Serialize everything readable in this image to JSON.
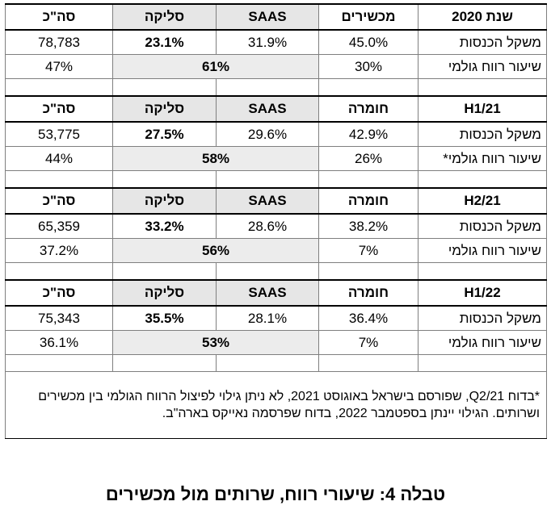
{
  "sections": [
    {
      "header": {
        "period": "שנת 2020",
        "col1": "מכשירים",
        "col2": "SAAS",
        "col3": "סליקה",
        "total": "סה\"כ"
      },
      "revenue": {
        "label": "משקל הכנסות",
        "col1": "45.0%",
        "col2": "31.9%",
        "col3": "23.1%",
        "total": "78,783"
      },
      "margin": {
        "label": "שיעור רווח גולמי",
        "col1": "30%",
        "merged": "61%",
        "total": "47%"
      }
    },
    {
      "header": {
        "period": "H1/21",
        "col1": "חומרה",
        "col2": "SAAS",
        "col3": "סליקה",
        "total": "סה\"כ"
      },
      "revenue": {
        "label": "משקל הכנסות",
        "col1": "42.9%",
        "col2": "29.6%",
        "col3": "27.5%",
        "total": "53,775"
      },
      "margin": {
        "label": "שיעור רווח גולמי*",
        "col1": "26%",
        "merged": "58%",
        "total": "44%"
      }
    },
    {
      "header": {
        "period": "H2/21",
        "col1": "חומרה",
        "col2": "SAAS",
        "col3": "סליקה",
        "total": "סה\"כ"
      },
      "revenue": {
        "label": "משקל הכנסות",
        "col1": "38.2%",
        "col2": "28.6%",
        "col3": "33.2%",
        "total": "65,359"
      },
      "margin": {
        "label": "שיעור רווח גולמי",
        "col1": "7%",
        "merged": "56%",
        "total": "37.2%"
      }
    },
    {
      "header": {
        "period": "H1/22",
        "col1": "חומרה",
        "col2": "SAAS",
        "col3": "סליקה",
        "total": "סה\"כ"
      },
      "revenue": {
        "label": "משקל הכנסות",
        "col1": "36.4%",
        "col2": "28.1%",
        "col3": "35.5%",
        "total": "75,343"
      },
      "margin": {
        "label": "שיעור רווח גולמי",
        "col1": "7%",
        "merged": "53%",
        "total": "36.1%"
      }
    }
  ],
  "footnote": "*בדוח Q2/21, שפורסם בישראל באוגוסט 2021, לא ניתן גילוי לפיצול הרווח הגולמי בין מכשירים ושרותים. הגילוי יינתן בספטמבר 2022, בדוח שפרסמה נאייקס בארה\"ב.",
  "caption": "טבלה 4: שיעורי רווח, שרותים מול מכשירים"
}
